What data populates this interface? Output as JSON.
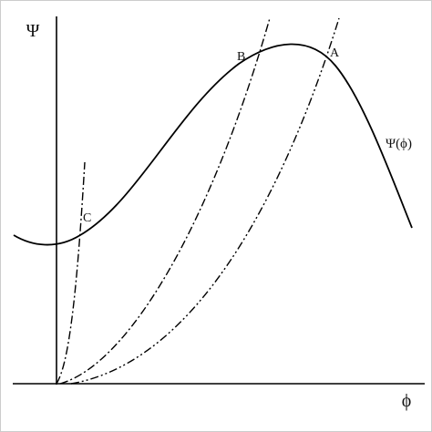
{
  "axes": {
    "y_label": "Ψ",
    "x_label": "ϕ"
  },
  "curve_label": "Ψ(ϕ)",
  "points": {
    "a": "A",
    "b": "B",
    "c": "C"
  }
}
